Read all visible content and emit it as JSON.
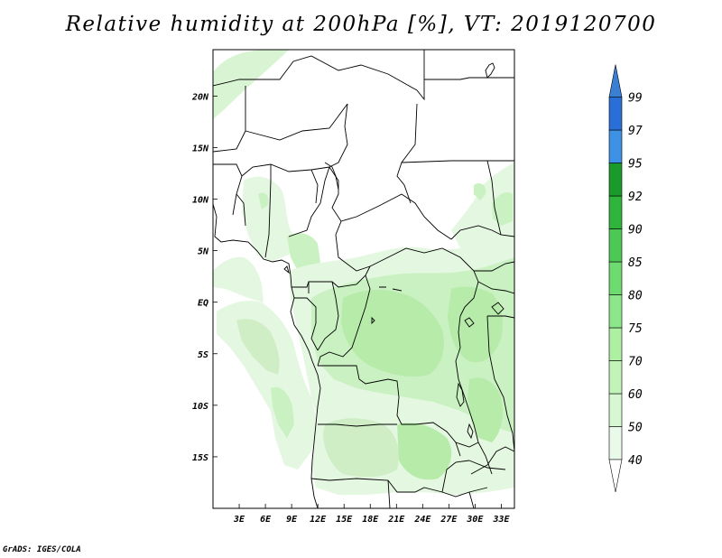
{
  "title": "Relative humidity at 200hPa [%], VT: 2019120700",
  "credit": "GrADS: IGES/COLA",
  "map": {
    "projection": "lat-lon",
    "lon_range": [
      0,
      34.5
    ],
    "lat_range": [
      -20,
      24.5
    ],
    "lat_ticks": [
      {
        "value": 20,
        "label": "20N"
      },
      {
        "value": 15,
        "label": "15N"
      },
      {
        "value": 10,
        "label": "10N"
      },
      {
        "value": 5,
        "label": "5N"
      },
      {
        "value": 0,
        "label": "EQ"
      },
      {
        "value": -5,
        "label": "5S"
      },
      {
        "value": -10,
        "label": "10S"
      },
      {
        "value": -15,
        "label": "15S"
      }
    ],
    "lon_ticks": [
      {
        "value": 3,
        "label": "3E"
      },
      {
        "value": 6,
        "label": "6E"
      },
      {
        "value": 9,
        "label": "9E"
      },
      {
        "value": 12,
        "label": "12E"
      },
      {
        "value": 15,
        "label": "15E"
      },
      {
        "value": 18,
        "label": "18E"
      },
      {
        "value": 21,
        "label": "21E"
      },
      {
        "value": 24,
        "label": "24E"
      },
      {
        "value": 27,
        "label": "27E"
      },
      {
        "value": 30,
        "label": "30E"
      },
      {
        "value": 33,
        "label": "33E"
      }
    ]
  },
  "colorbar": {
    "levels": [
      {
        "label": "40",
        "color": "#ffffff"
      },
      {
        "label": "50",
        "color": "#eafaea"
      },
      {
        "label": "60",
        "color": "#d6f7d2"
      },
      {
        "label": "70",
        "color": "#c2f4b9"
      },
      {
        "label": "75",
        "color": "#adf0a2"
      },
      {
        "label": "80",
        "color": "#8ce68a"
      },
      {
        "label": "85",
        "color": "#6ddb70"
      },
      {
        "label": "90",
        "color": "#4cc955"
      },
      {
        "label": "92",
        "color": "#2fb43c"
      },
      {
        "label": "95",
        "color": "#1a9a2b"
      },
      {
        "label": "97",
        "color": "#3d92e6"
      },
      {
        "label": "99",
        "color": "#2a6fd8"
      }
    ],
    "top_color": "#3a7fd4"
  },
  "colors": {
    "shade_light": "#e4f7e0",
    "shade_mid": "#c8f1c0",
    "shade_dark": "#b2ec a8"
  }
}
